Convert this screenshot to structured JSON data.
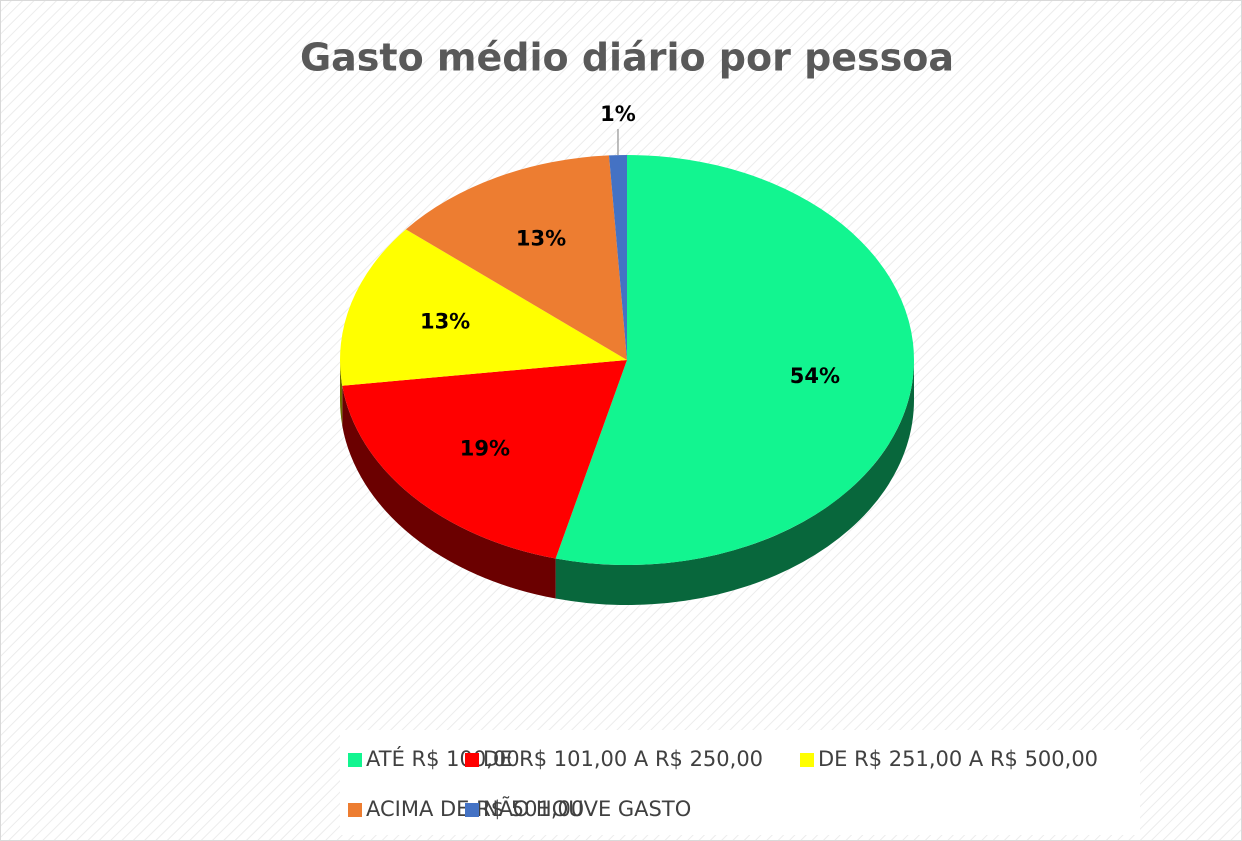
{
  "chart_data": {
    "type": "pie",
    "title": "Gasto médio diário por pessoa",
    "categories": [
      "ATÉ R$ 100,00",
      "DE R$ 101,00 A R$ 250,00",
      "DE R$ 251,00 A R$ 500,00",
      "ACIMA DE R$ 501,00",
      "NÃO HOUVE GASTO"
    ],
    "values": [
      54,
      19,
      13,
      13,
      1
    ],
    "value_labels": [
      "54%",
      "19%",
      "13%",
      "13%",
      "1%"
    ],
    "colors": [
      "#12F590",
      "#FF0000",
      "#FFFF00",
      "#ED7D31",
      "#4472C4"
    ],
    "legend": "bottom"
  }
}
